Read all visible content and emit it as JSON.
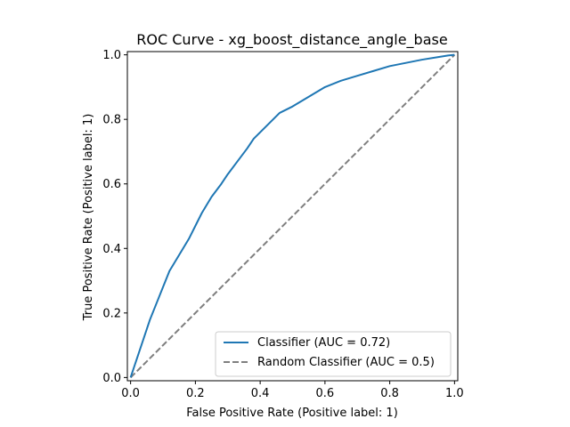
{
  "chart_data": {
    "type": "line",
    "title": "ROC Curve - xg_boost_distance_angle_base",
    "xlabel": "False Positive Rate (Positive label: 1)",
    "ylabel": "True Positive Rate (Positive label: 1)",
    "xlim": [
      -0.01,
      1.01
    ],
    "ylim": [
      -0.01,
      1.01
    ],
    "xticks": [
      "0.0",
      "0.2",
      "0.4",
      "0.6",
      "0.8",
      "1.0"
    ],
    "yticks": [
      "0.0",
      "0.2",
      "0.4",
      "0.6",
      "0.8",
      "1.0"
    ],
    "grid": false,
    "legend_position": "lower-right",
    "series": [
      {
        "name": "Classifier (AUC = 0.72)",
        "color": "#1f77b4",
        "style": "solid",
        "x": [
          0.0,
          0.01,
          0.02,
          0.04,
          0.06,
          0.08,
          0.1,
          0.12,
          0.15,
          0.18,
          0.2,
          0.22,
          0.25,
          0.28,
          0.3,
          0.33,
          0.36,
          0.38,
          0.4,
          0.43,
          0.46,
          0.5,
          0.55,
          0.6,
          0.65,
          0.7,
          0.75,
          0.8,
          0.85,
          0.9,
          0.95,
          0.98,
          1.0
        ],
        "y": [
          0.0,
          0.03,
          0.06,
          0.12,
          0.18,
          0.23,
          0.28,
          0.33,
          0.38,
          0.43,
          0.47,
          0.51,
          0.56,
          0.6,
          0.63,
          0.67,
          0.71,
          0.74,
          0.76,
          0.79,
          0.82,
          0.84,
          0.87,
          0.9,
          0.92,
          0.935,
          0.95,
          0.965,
          0.975,
          0.985,
          0.993,
          0.998,
          1.0
        ]
      },
      {
        "name": "Random Classifier (AUC = 0.5)",
        "color": "#7f7f7f",
        "style": "dashed",
        "x": [
          0,
          1
        ],
        "y": [
          0,
          1
        ]
      }
    ]
  }
}
